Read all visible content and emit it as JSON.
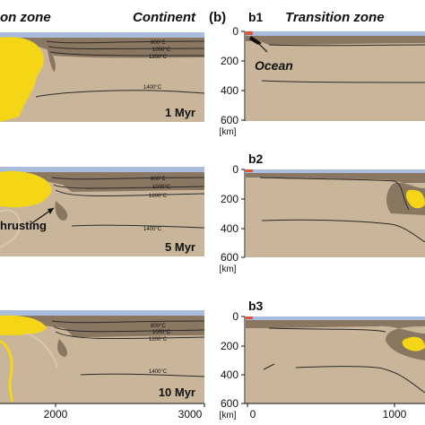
{
  "header": {
    "left_title": "on zone",
    "left_title2": "Continent",
    "panel_b_label": "(b)",
    "right_title": "Transition zone"
  },
  "left_panels": [
    {
      "time": "1 Myr"
    },
    {
      "time": "5 Myr"
    },
    {
      "time": "10 Myr"
    }
  ],
  "right_panels": [
    {
      "label": "b1"
    },
    {
      "label": "b2"
    },
    {
      "label": "b3"
    }
  ],
  "isotherms": [
    "800°C",
    "1000°C",
    "1200°C",
    "1400°C"
  ],
  "annotations": {
    "ocean": "Ocean",
    "thrusting": "hrusting"
  },
  "axes": {
    "depth_ticks": [
      "0",
      "200",
      "400",
      "600"
    ],
    "depth_unit": "[km]",
    "left_x_ticks": [
      "2000",
      "3000"
    ],
    "right_x_ticks": [
      "0",
      "1000"
    ]
  },
  "colors": {
    "mantle": "#c9b59a",
    "lithosphere": "#a89379",
    "crust": "#8a7762",
    "plume": "#f5d616",
    "sea": "#a9bcdc",
    "ocean_crust": "#e0533a",
    "line": "#2a2a2a"
  }
}
